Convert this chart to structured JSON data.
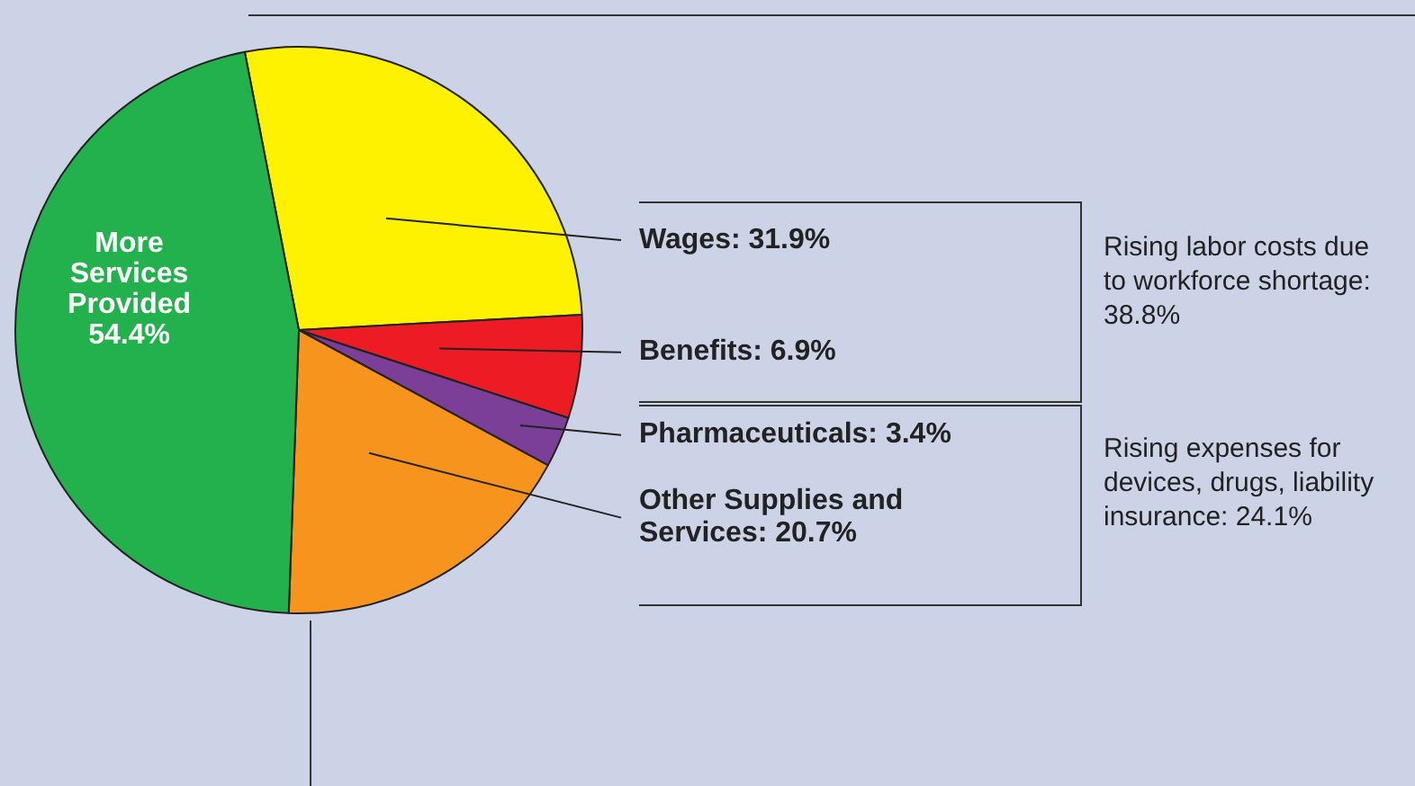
{
  "chart_data": {
    "type": "pie",
    "categories": [
      "Wages",
      "Benefits",
      "Pharmaceuticals",
      "Other Supplies and Services",
      "More Services Provided"
    ],
    "values": [
      31.9,
      6.9,
      3.4,
      20.7,
      54.4
    ],
    "value_labels": [
      "31.9%",
      "6.9%",
      "3.4%",
      "20.7%",
      "54.4%"
    ],
    "colors": [
      "#fff200",
      "#ed1c24",
      "#7b3f98",
      "#f7941d",
      "#22b14c"
    ],
    "annotations": [
      "Rising labor costs due to workforce shortage: 38.8%",
      "Rising expenses for devices, drugs, liability insurance: 24.1%"
    ],
    "legend": false
  }
}
